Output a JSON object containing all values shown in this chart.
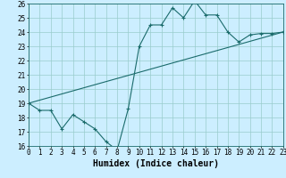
{
  "xlabel": "Humidex (Indice chaleur)",
  "bg_color": "#cceeff",
  "grid_color": "#99cccc",
  "line_color": "#1a6b6b",
  "x_min": 0,
  "x_max": 23,
  "y_min": 16,
  "y_max": 26,
  "curve_x": [
    0,
    1,
    2,
    3,
    4,
    5,
    6,
    7,
    8,
    9,
    10,
    11,
    12,
    13,
    14,
    15,
    16,
    17,
    18,
    19,
    20,
    21,
    22,
    23
  ],
  "curve_y": [
    19.0,
    18.5,
    18.5,
    17.2,
    18.2,
    17.7,
    17.2,
    16.3,
    15.7,
    18.6,
    23.0,
    24.5,
    24.5,
    25.7,
    25.0,
    26.2,
    25.2,
    25.2,
    24.0,
    23.3,
    23.8,
    23.9,
    23.9,
    24.0
  ],
  "trend_x": [
    0,
    23
  ],
  "trend_y": [
    19.0,
    24.0
  ],
  "xtick_labels": [
    "0",
    "1",
    "2",
    "3",
    "4",
    "5",
    "6",
    "7",
    "8",
    "9",
    "10",
    "11",
    "12",
    "13",
    "14",
    "15",
    "16",
    "17",
    "18",
    "19",
    "20",
    "21",
    "22",
    "23"
  ],
  "ytick_labels": [
    "16",
    "17",
    "18",
    "19",
    "20",
    "21",
    "22",
    "23",
    "24",
    "25",
    "26"
  ],
  "ytick_vals": [
    16,
    17,
    18,
    19,
    20,
    21,
    22,
    23,
    24,
    25,
    26
  ],
  "marker": "+",
  "markersize": 3,
  "linewidth": 0.8,
  "xlabel_fontsize": 7,
  "tick_fontsize": 5.5
}
